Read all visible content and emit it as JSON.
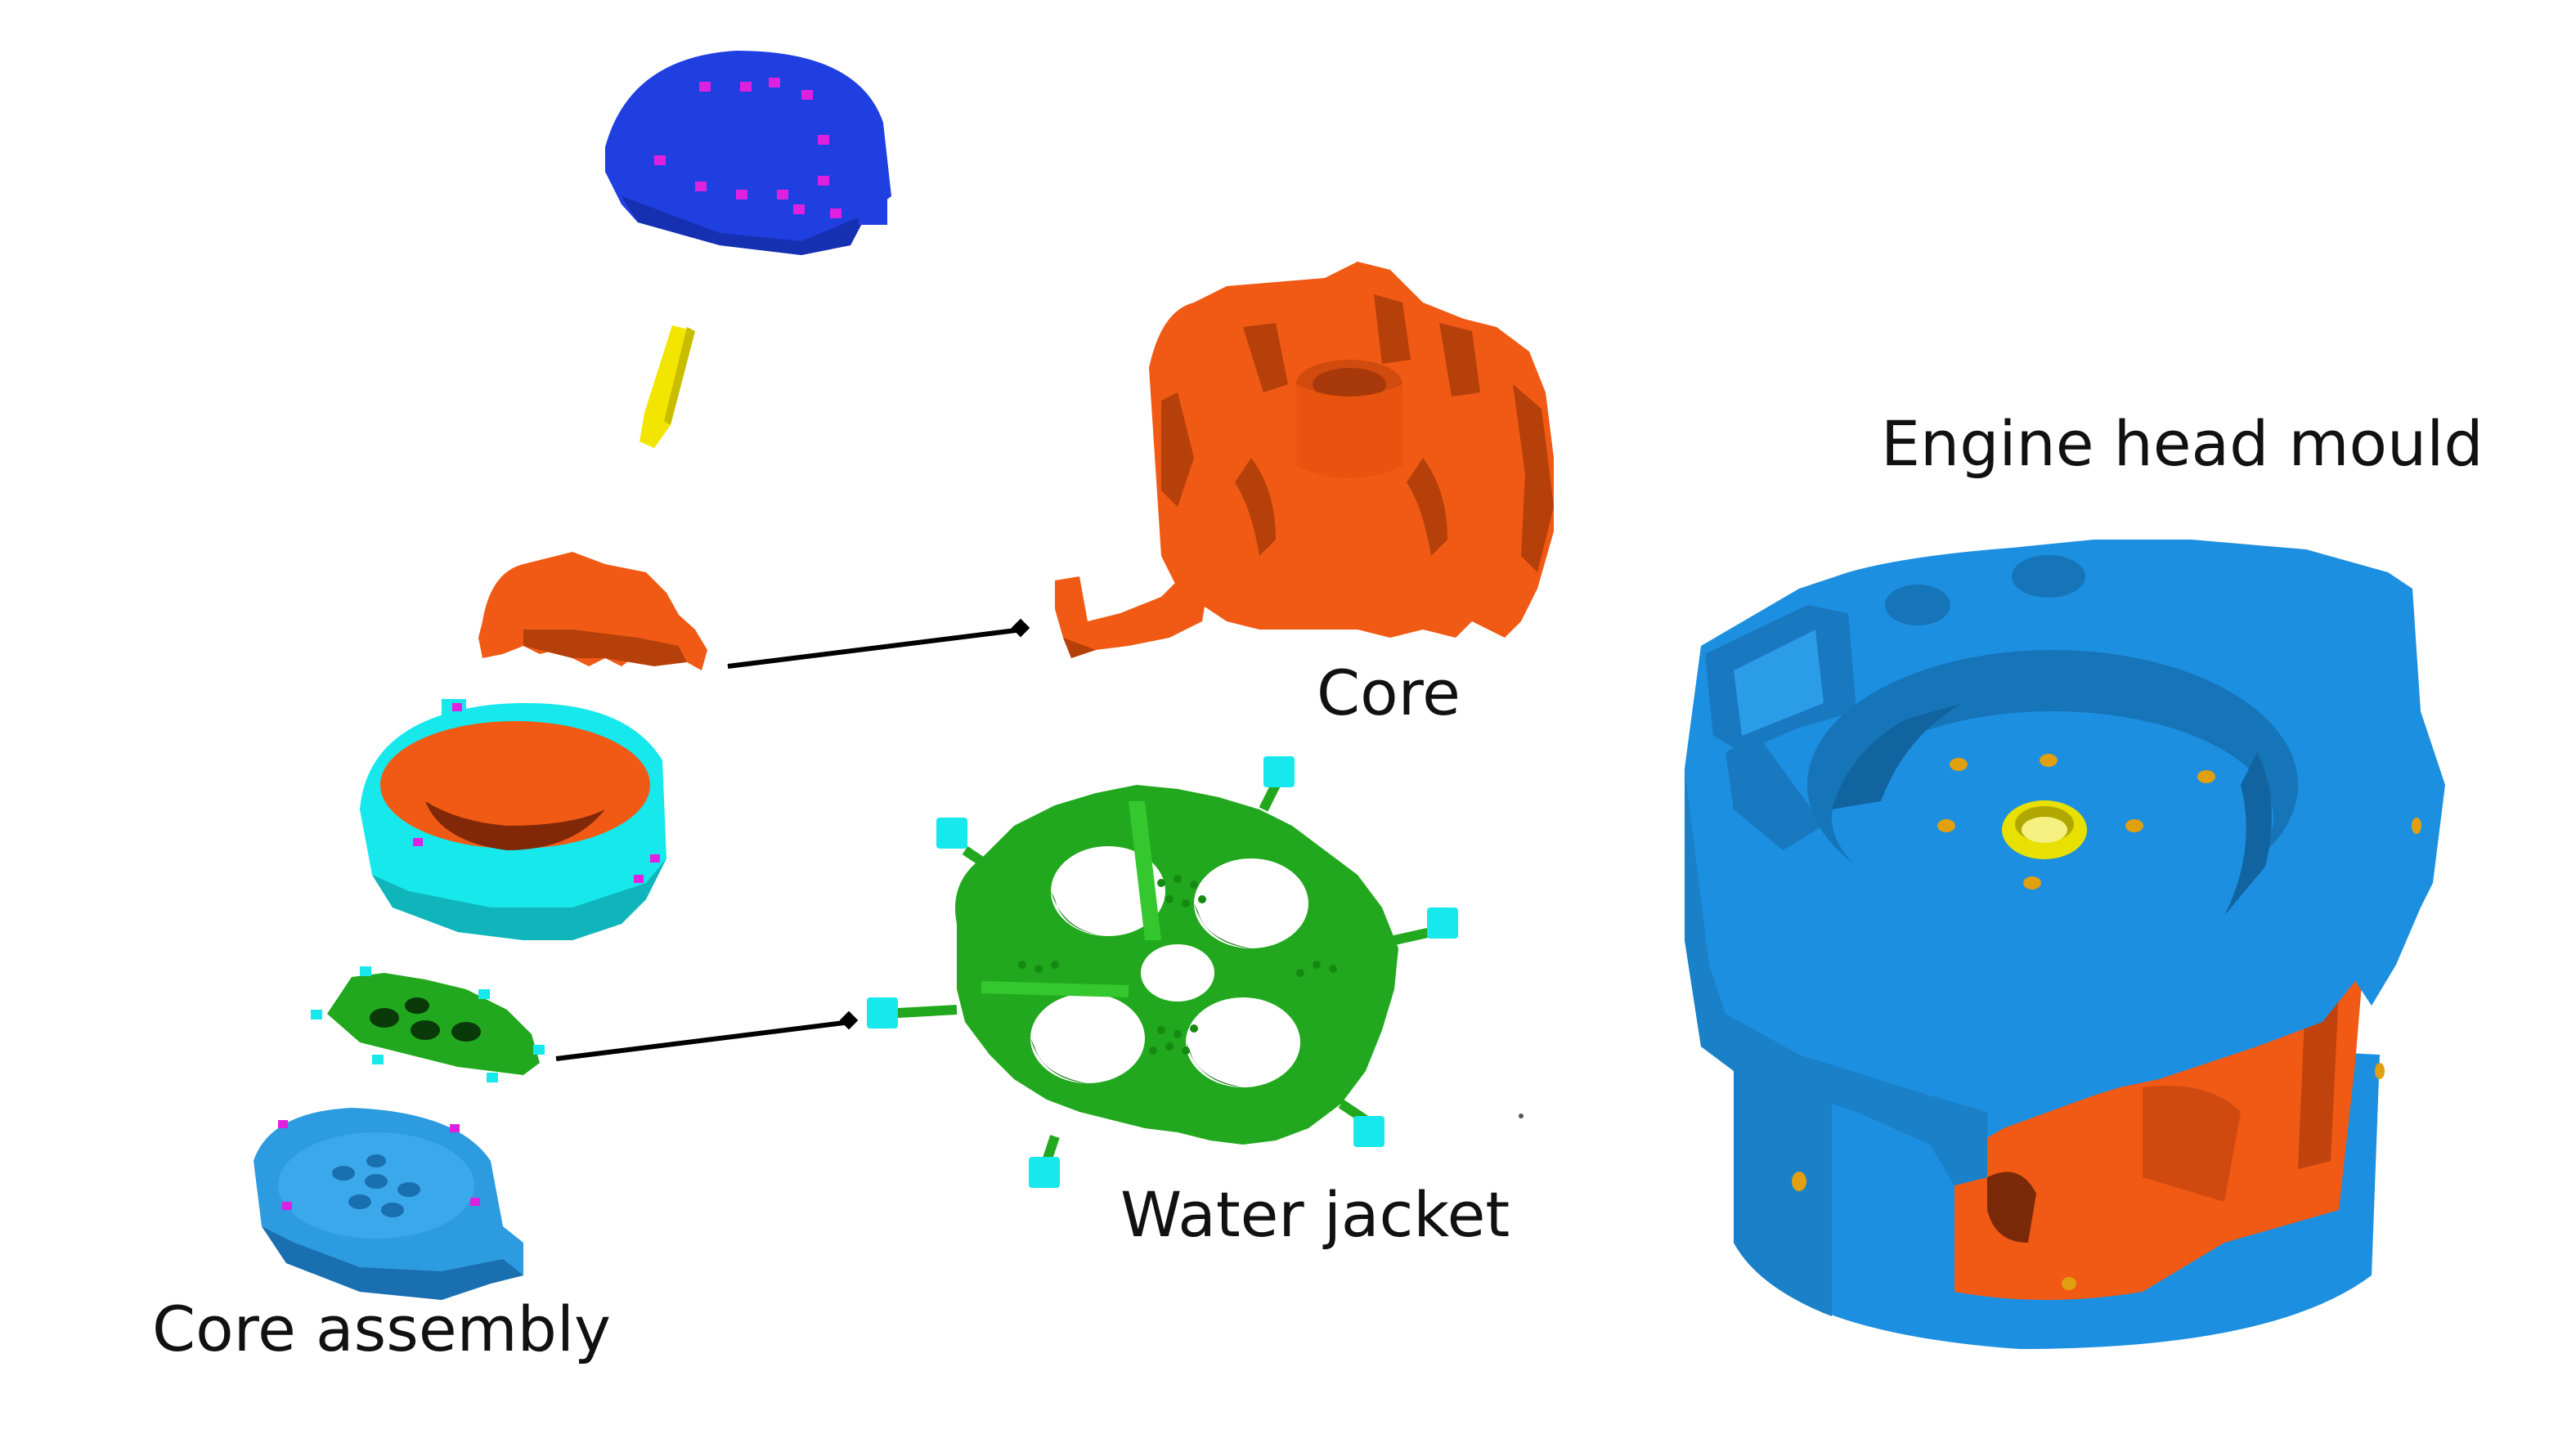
{
  "labels": {
    "engine_head_mould": "Engine head mould",
    "core": "Core",
    "water_jacket": "Water jacket",
    "core_assembly": "Core assembly"
  },
  "colors": {
    "top_cover": "#1f3fe0",
    "pin": "#f2e600",
    "core": "#f05a14",
    "ring": "#16e8ec",
    "water_jacket": "#22a81e",
    "base_plate": "#2d9be0",
    "mould": "#1d8fe0",
    "mould_shadow": "#1570b5",
    "hole": "#e0a010",
    "magenta": "#e020e0",
    "arrow": "#000000"
  },
  "icons": {
    "top_cover": "top-cover-part-icon",
    "pin": "locating-pin-icon",
    "core": "sand-core-icon",
    "ring": "mould-ring-icon",
    "water_jacket": "water-jacket-icon",
    "base": "base-plate-icon",
    "mould": "engine-head-mould-icon"
  }
}
